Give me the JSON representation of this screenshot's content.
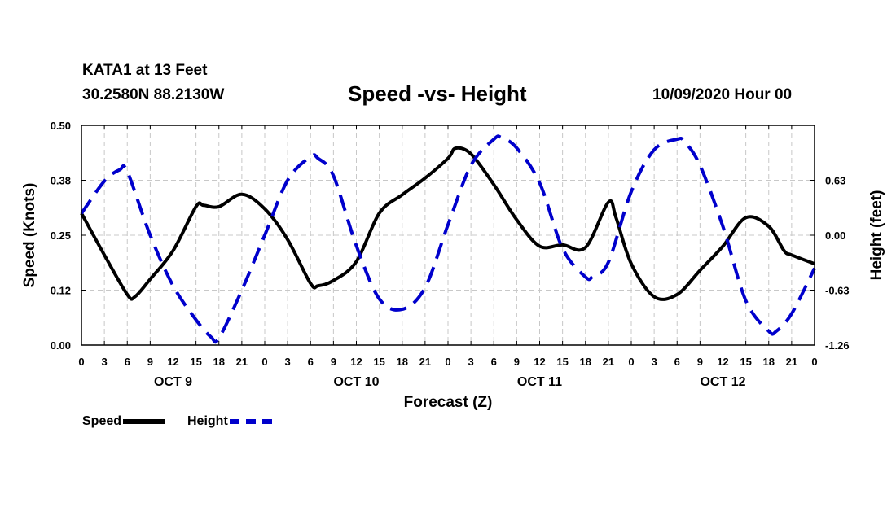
{
  "header": {
    "station": "KATA1 at 13 Feet",
    "coords": "30.2580N 88.2130W",
    "title": "Speed -vs- Height",
    "timestamp": "10/09/2020 Hour 00"
  },
  "chart_data": {
    "type": "line",
    "title": "Speed -vs- Height",
    "xlabel": "Forecast (Z)",
    "ylabel": "Speed (Knots)",
    "y2label": "Height (feet)",
    "ylim": [
      0,
      0.5
    ],
    "y2lim": [
      -1.26,
      1.26
    ],
    "xlim": [
      0,
      96
    ],
    "yticks": [
      "0.00",
      "0.12",
      "0.25",
      "0.38",
      "0.50"
    ],
    "yticks_values": [
      0,
      0.125,
      0.25,
      0.375,
      0.5
    ],
    "y2ticks": [
      "-1.26",
      "-0.63",
      "0.00",
      "0.63"
    ],
    "y2ticks_values": [
      -1.26,
      -0.63,
      0,
      0.63
    ],
    "xtick_labels": [
      "0",
      "3",
      "6",
      "9",
      "12",
      "15",
      "18",
      "21",
      "0",
      "3",
      "6",
      "9",
      "12",
      "15",
      "18",
      "21",
      "0",
      "3",
      "6",
      "9",
      "12",
      "15",
      "18",
      "21",
      "0",
      "3",
      "6",
      "9",
      "12",
      "15",
      "18",
      "21",
      "0"
    ],
    "day_labels": [
      {
        "label": "OCT 9",
        "center_hour": 12
      },
      {
        "label": "OCT 10",
        "center_hour": 36
      },
      {
        "label": "OCT 11",
        "center_hour": 60
      },
      {
        "label": "OCT 12",
        "center_hour": 84
      }
    ],
    "grid": true,
    "series": [
      {
        "name": "Speed",
        "axis": "left",
        "color": "#000000",
        "style": "solid",
        "x": [
          0,
          3,
          6,
          7,
          9,
          12,
          15,
          16,
          18,
          21,
          24,
          27,
          30,
          31,
          33,
          36,
          39,
          42,
          45,
          48,
          49,
          51,
          54,
          57,
          60,
          63,
          66,
          69,
          70,
          72,
          75,
          78,
          81,
          84,
          87,
          90,
          92,
          93,
          96
        ],
        "y": [
          0.3,
          0.205,
          0.115,
          0.11,
          0.15,
          0.215,
          0.315,
          0.318,
          0.315,
          0.343,
          0.31,
          0.24,
          0.14,
          0.135,
          0.147,
          0.19,
          0.3,
          0.342,
          0.38,
          0.425,
          0.448,
          0.435,
          0.365,
          0.285,
          0.225,
          0.228,
          0.222,
          0.325,
          0.29,
          0.185,
          0.11,
          0.115,
          0.17,
          0.225,
          0.29,
          0.27,
          0.215,
          0.205,
          0.185
        ]
      },
      {
        "name": "Height",
        "axis": "right",
        "color": "#0000cc",
        "style": "dashed",
        "x": [
          0,
          3,
          5,
          6,
          9,
          12,
          15,
          17,
          18,
          21,
          24,
          27,
          30,
          31,
          33,
          36,
          39,
          42,
          45,
          48,
          51,
          54,
          55,
          57,
          60,
          63,
          66,
          67,
          69,
          72,
          75,
          78,
          79,
          81,
          84,
          87,
          90,
          91,
          93,
          96
        ],
        "y": [
          0.25,
          0.62,
          0.75,
          0.73,
          0.0,
          -0.58,
          -0.97,
          -1.17,
          -1.18,
          -0.63,
          0.0,
          0.63,
          0.9,
          0.88,
          0.68,
          -0.12,
          -0.73,
          -0.85,
          -0.6,
          0.12,
          0.8,
          1.1,
          1.12,
          1.0,
          0.6,
          -0.15,
          -0.48,
          -0.47,
          -0.31,
          0.5,
          0.98,
          1.1,
          1.07,
          0.8,
          0.1,
          -0.75,
          -1.1,
          -1.1,
          -0.9,
          -0.38
        ]
      }
    ],
    "legend": [
      {
        "label": "Speed"
      },
      {
        "label": "Height"
      }
    ]
  }
}
